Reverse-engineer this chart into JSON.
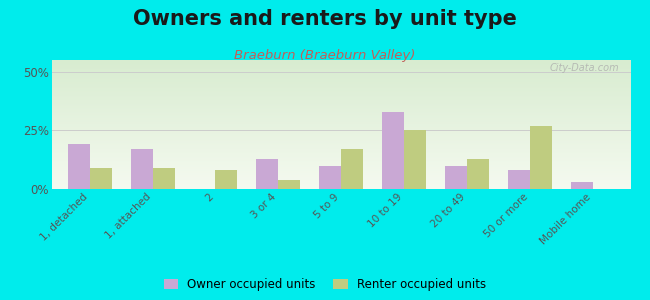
{
  "title": "Owners and renters by unit type",
  "subtitle": "Braeburn (Braeburn Valley)",
  "categories": [
    "1, detached",
    "1, attached",
    "2",
    "3 or 4",
    "5 to 9",
    "10 to 19",
    "20 to 49",
    "50 or more",
    "Mobile home"
  ],
  "owner_values": [
    19,
    17,
    0,
    13,
    10,
    33,
    10,
    8,
    3
  ],
  "renter_values": [
    9,
    9,
    8,
    4,
    17,
    25,
    13,
    27,
    0
  ],
  "owner_color": "#c9a8d4",
  "renter_color": "#bfcc80",
  "background_color": "#00ecec",
  "plot_bg_top_color": "#d8ecd0",
  "plot_bg_bottom_color": "#f5faf0",
  "yticks": [
    0,
    25,
    50
  ],
  "ylim": [
    0,
    55
  ],
  "bar_width": 0.35,
  "legend_owner": "Owner occupied units",
  "legend_renter": "Renter occupied units",
  "title_fontsize": 15,
  "subtitle_fontsize": 9.5,
  "watermark": "City-Data.com"
}
